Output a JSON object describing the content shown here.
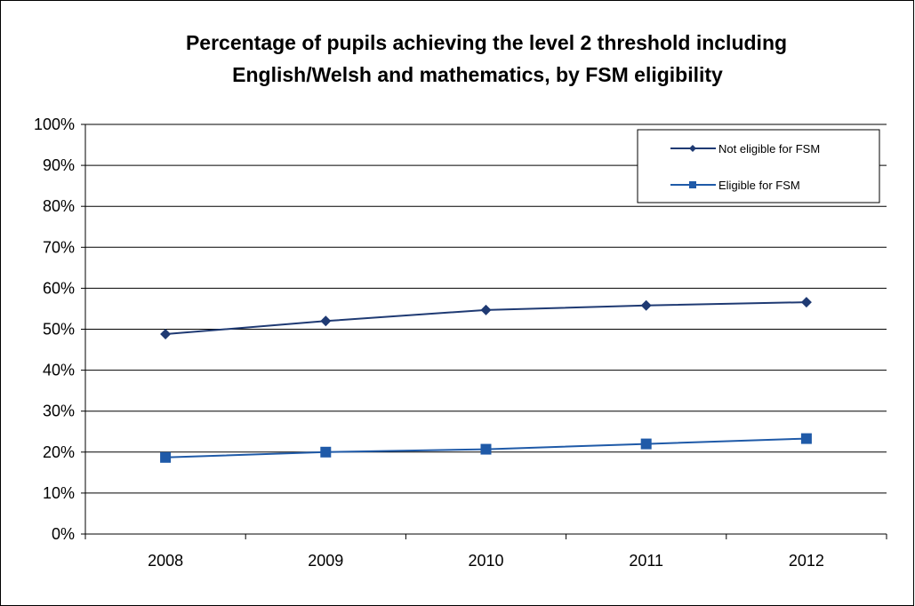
{
  "chart_data": {
    "type": "line",
    "title": [
      "Percentage of pupils achieving the level 2 threshold including",
      "English/Welsh and mathematics, by FSM eligibility"
    ],
    "xlabel": "",
    "ylabel": "",
    "categories": [
      "2008",
      "2009",
      "2010",
      "2011",
      "2012"
    ],
    "ylim": [
      0,
      100
    ],
    "yticks": [
      "0%",
      "10%",
      "20%",
      "30%",
      "40%",
      "50%",
      "60%",
      "70%",
      "80%",
      "90%",
      "100%"
    ],
    "grid": true,
    "legend_position": "top-right",
    "series": [
      {
        "name": "Not eligible for FSM",
        "values": [
          48.8,
          52.0,
          54.7,
          55.8,
          56.6
        ],
        "color": "#1f3a73",
        "marker": "diamond"
      },
      {
        "name": "Eligible for FSM",
        "values": [
          18.7,
          20.0,
          20.7,
          22.0,
          23.3
        ],
        "color": "#1f5aa8",
        "marker": "square"
      }
    ]
  }
}
